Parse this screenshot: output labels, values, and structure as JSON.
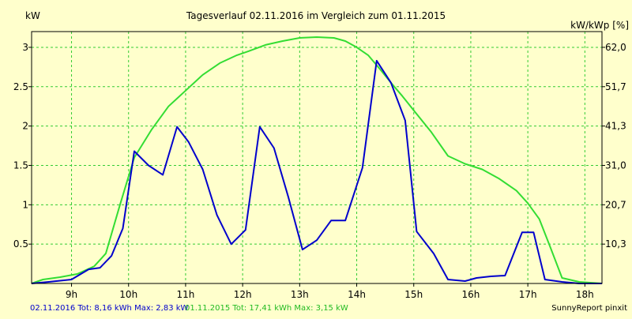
{
  "chart_data": {
    "type": "line",
    "title": "Tagesverlauf 02.11.2016 im Vergleich zum 01.11.2015",
    "y_left_label": "kW",
    "y_right_label": "kW/kWp [%]",
    "x_ticks": [
      "9h",
      "10h",
      "11h",
      "12h",
      "13h",
      "14h",
      "15h",
      "16h",
      "17h",
      "18h"
    ],
    "x_range": [
      8.3,
      18.3
    ],
    "y_left_ticks": [
      "0.5",
      "1",
      "1.5",
      "2",
      "2.5",
      "3"
    ],
    "y_left_range": [
      0,
      3.2
    ],
    "y_right_ticks": [
      "10,3",
      "20,7",
      "31,0",
      "41,3",
      "51,7",
      "62,0"
    ],
    "grid": true,
    "series": [
      {
        "name": "02.11.2016",
        "color": "#0000cc",
        "x": [
          8.3,
          8.6,
          9.0,
          9.3,
          9.5,
          9.7,
          9.9,
          10.1,
          10.35,
          10.6,
          10.85,
          11.05,
          11.3,
          11.55,
          11.8,
          12.05,
          12.3,
          12.55,
          12.8,
          13.05,
          13.3,
          13.55,
          13.8,
          14.1,
          14.35,
          14.6,
          14.85,
          15.05,
          15.35,
          15.6,
          15.9,
          16.1,
          16.35,
          16.6,
          16.9,
          17.1,
          17.3,
          17.6,
          17.9,
          18.3
        ],
        "y": [
          0.0,
          0.02,
          0.05,
          0.18,
          0.2,
          0.35,
          0.7,
          1.68,
          1.5,
          1.38,
          1.99,
          1.8,
          1.45,
          0.87,
          0.5,
          0.68,
          1.99,
          1.72,
          1.1,
          0.43,
          0.55,
          0.8,
          0.8,
          1.47,
          2.83,
          2.55,
          2.07,
          0.66,
          0.38,
          0.05,
          0.03,
          0.07,
          0.09,
          0.1,
          0.65,
          0.65,
          0.05,
          0.02,
          0.0,
          0.0
        ]
      },
      {
        "name": "01.11.2015",
        "color": "#33dd33",
        "x": [
          8.3,
          8.5,
          8.8,
          9.1,
          9.4,
          9.6,
          9.85,
          10.1,
          10.4,
          10.7,
          11.0,
          11.3,
          11.6,
          11.9,
          12.1,
          12.4,
          12.7,
          13.0,
          13.3,
          13.6,
          13.8,
          14.0,
          14.2,
          14.4,
          14.6,
          14.8,
          15.0,
          15.3,
          15.6,
          15.9,
          16.2,
          16.5,
          16.8,
          17.0,
          17.2,
          17.4,
          17.6,
          17.9,
          18.3
        ],
        "y": [
          0.0,
          0.05,
          0.08,
          0.12,
          0.22,
          0.38,
          1.0,
          1.6,
          1.95,
          2.25,
          2.45,
          2.65,
          2.8,
          2.9,
          2.95,
          3.03,
          3.08,
          3.12,
          3.13,
          3.12,
          3.08,
          3.0,
          2.9,
          2.73,
          2.55,
          2.38,
          2.2,
          1.93,
          1.62,
          1.52,
          1.45,
          1.33,
          1.18,
          1.02,
          0.82,
          0.45,
          0.07,
          0.02,
          0.0
        ]
      }
    ]
  },
  "footer": {
    "summary_2016": "02.11.2016 Tot: 8,16 kWh Max: 2,83 kW",
    "summary_2015": "01.11.2015 Tot: 17,41 kWh Max: 3,15 kW",
    "credit": "SunnyReport pinxit"
  },
  "colors": {
    "background": "#ffffcc",
    "grid": "#33cc33",
    "axis": "#000000",
    "series_2016": "#0000cc",
    "series_2015": "#33dd33"
  }
}
